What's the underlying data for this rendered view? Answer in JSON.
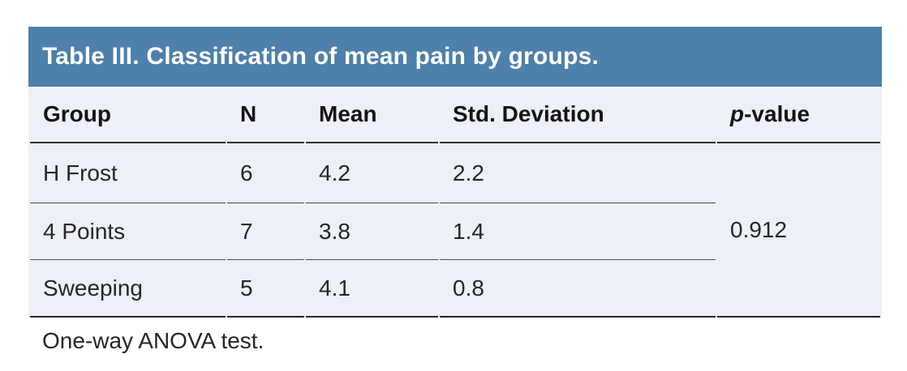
{
  "figure": {
    "title": "Table III. Classification of mean pain by groups.",
    "columns": {
      "group": "Group",
      "n": "N",
      "mean": "Mean",
      "std": "Std. Deviation",
      "p_italic": "p",
      "p_rest": "-value"
    },
    "rows": [
      {
        "group": "H Frost",
        "n": "6",
        "mean": "4.2",
        "std": "2.2"
      },
      {
        "group": "4 Points",
        "n": "7",
        "mean": "3.8",
        "std": "1.4"
      },
      {
        "group": "Sweeping",
        "n": "5",
        "mean": "4.1",
        "std": "0.8"
      }
    ],
    "p_value": "0.912",
    "footnote": "One-way ANOVA test."
  },
  "colors": {
    "title_bar_bg": "#4d80aa",
    "title_text": "#ffffff",
    "table_bg": "#edf0f6",
    "rule_dark": "#303030",
    "rule_light": "#4a4a4a",
    "text": "#262626"
  }
}
